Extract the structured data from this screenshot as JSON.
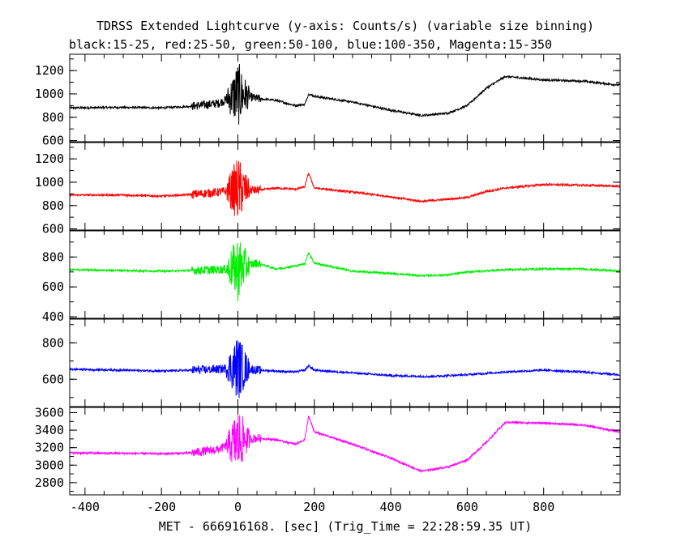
{
  "chart_data": {
    "type": "line",
    "title": "TDRSS Extended Lightcurve (y-axis: Counts/s) (variable size binning)",
    "subtitle": "black:15-25, red:25-50, green:50-100, blue:100-350, Magenta:15-350",
    "xlabel": "MET - 666916168. [sec] (Trig_Time = 22:28:59.35 UT)",
    "xlim": [
      -440,
      1000
    ],
    "x_ticks": [
      -400,
      -200,
      0,
      200,
      400,
      600,
      800
    ],
    "grid": false,
    "panels": [
      {
        "band": "black",
        "name": "15-25",
        "color": "#000000",
        "ylim": [
          590,
          1340
        ],
        "y_ticks": [
          600,
          800,
          1000,
          1200
        ],
        "x": [
          -440,
          -300,
          -200,
          -120,
          -50,
          0,
          50,
          100,
          150,
          175,
          185,
          200,
          300,
          400,
          480,
          550,
          600,
          650,
          700,
          800,
          900,
          1000
        ],
        "y": [
          880,
          885,
          880,
          895,
          920,
          1000,
          960,
          945,
          900,
          910,
          1000,
          980,
          930,
          860,
          815,
          835,
          900,
          1050,
          1150,
          1120,
          1110,
          1075
        ]
      },
      {
        "band": "red",
        "name": "25-50",
        "color": "#ff0000",
        "ylim": [
          590,
          1340
        ],
        "y_ticks": [
          600,
          800,
          1000,
          1200
        ],
        "x": [
          -440,
          -300,
          -200,
          -120,
          -50,
          0,
          50,
          100,
          150,
          175,
          185,
          200,
          300,
          400,
          480,
          550,
          600,
          650,
          700,
          800,
          900,
          1000
        ],
        "y": [
          890,
          890,
          880,
          895,
          915,
          940,
          930,
          950,
          940,
          960,
          1080,
          950,
          915,
          875,
          835,
          855,
          870,
          920,
          950,
          980,
          975,
          965
        ]
      },
      {
        "band": "green",
        "name": "50-100",
        "color": "#00ee00",
        "ylim": [
          390,
          975
        ],
        "y_ticks": [
          400,
          600,
          800
        ],
        "x": [
          -440,
          -300,
          -200,
          -120,
          -50,
          0,
          50,
          100,
          150,
          175,
          185,
          200,
          300,
          400,
          480,
          550,
          600,
          700,
          800,
          900,
          1000
        ],
        "y": [
          715,
          710,
          705,
          710,
          715,
          725,
          760,
          720,
          740,
          755,
          830,
          760,
          705,
          690,
          675,
          680,
          700,
          715,
          720,
          720,
          705
        ]
      },
      {
        "band": "blue",
        "name": "100-350",
        "color": "#0000ff",
        "ylim": [
          450,
          930
        ],
        "y_ticks": [
          600,
          800
        ],
        "x": [
          -440,
          -300,
          -200,
          -120,
          -50,
          0,
          50,
          100,
          150,
          175,
          185,
          200,
          300,
          400,
          500,
          600,
          700,
          800,
          900,
          1000
        ],
        "y": [
          655,
          650,
          645,
          650,
          655,
          665,
          650,
          645,
          640,
          650,
          675,
          650,
          635,
          620,
          615,
          625,
          640,
          650,
          640,
          625
        ]
      },
      {
        "band": "magenta",
        "name": "15-350",
        "color": "#ff00ff",
        "ylim": [
          2660,
          3660
        ],
        "y_ticks": [
          2800,
          3000,
          3200,
          3400,
          3600
        ],
        "x": [
          -440,
          -300,
          -200,
          -120,
          -50,
          0,
          50,
          100,
          150,
          175,
          185,
          200,
          300,
          400,
          480,
          550,
          600,
          650,
          700,
          800,
          900,
          1000
        ],
        "y": [
          3140,
          3135,
          3130,
          3140,
          3180,
          3280,
          3310,
          3290,
          3240,
          3290,
          3560,
          3380,
          3240,
          3080,
          2930,
          2980,
          3060,
          3260,
          3490,
          3480,
          3460,
          3380
        ]
      }
    ]
  }
}
